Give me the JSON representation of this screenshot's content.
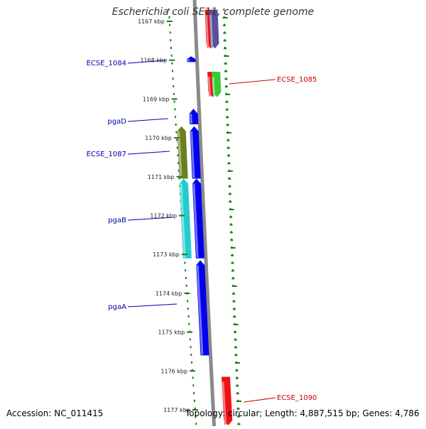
{
  "title": "Escherichia coli SE11, complete genome",
  "footer": {
    "accession": "Accession: NC_011415",
    "summary": "Topology: circular; Length: 4,887,515 bp; Genes: 4,786"
  },
  "colors": {
    "backbone": "#8a8a8a",
    "tick": "#1a7a1a",
    "label_forward": "#0000aa",
    "label_reverse": "#cc0000"
  },
  "scale": {
    "unit": "kbp",
    "ticks": [
      {
        "label": "1167 kbp",
        "pos": 1167
      },
      {
        "label": "1168 kbp",
        "pos": 1168
      },
      {
        "label": "1169 kbp",
        "pos": 1169
      },
      {
        "label": "1170 kbp",
        "pos": 1170
      },
      {
        "label": "1171 kbp",
        "pos": 1171
      },
      {
        "label": "1172 kbp",
        "pos": 1172
      },
      {
        "label": "1173 kbp",
        "pos": 1173
      },
      {
        "label": "1174 kbp",
        "pos": 1174
      },
      {
        "label": "1175 kbp",
        "pos": 1175
      },
      {
        "label": "1176 kbp",
        "pos": 1176
      },
      {
        "label": "1177 kbp",
        "pos": 1177
      }
    ]
  },
  "genes": [
    {
      "label": "",
      "start": 1166.7,
      "end": 1167.7,
      "strand": "reverse",
      "track": 1,
      "color": "#ee1111"
    },
    {
      "label": "",
      "start": 1166.7,
      "end": 1167.7,
      "strand": "reverse",
      "track": 2,
      "color": "#5a4fa0"
    },
    {
      "label": "ECSE_1084",
      "start": 1167.9,
      "end": 1168.05,
      "strand": "forward",
      "track": 1,
      "color": "#0000ee"
    },
    {
      "label": "ECSE_1085",
      "start": 1168.3,
      "end": 1168.95,
      "strand": "reverse",
      "track": 1,
      "color": "#ee1111"
    },
    {
      "label": "",
      "start": 1168.3,
      "end": 1168.95,
      "strand": "reverse",
      "track": 2,
      "color": "#33cc33"
    },
    {
      "label": "pgaD",
      "start": 1169.25,
      "end": 1169.65,
      "strand": "forward",
      "track": 1,
      "color": "#0000ee"
    },
    {
      "label": "ECSE_1087",
      "start": 1169.7,
      "end": 1171.05,
      "strand": "forward",
      "track": 2,
      "color": "#6b7f1f"
    },
    {
      "label": "",
      "start": 1169.7,
      "end": 1171.05,
      "strand": "forward",
      "track": 1,
      "color": "#0000ee"
    },
    {
      "label": "pgaB",
      "start": 1171.05,
      "end": 1173.1,
      "strand": "forward",
      "track": 2,
      "color": "#22cccc"
    },
    {
      "label": "",
      "start": 1171.05,
      "end": 1173.1,
      "strand": "forward",
      "track": 1,
      "color": "#0000ee"
    },
    {
      "label": "pgaA",
      "start": 1173.15,
      "end": 1175.6,
      "strand": "forward",
      "track": 1,
      "color": "#0000ee"
    },
    {
      "label": "ECSE_1090",
      "start": 1176.15,
      "end": 1177.4,
      "strand": "reverse",
      "track": 1,
      "color": "#ee1111"
    }
  ]
}
